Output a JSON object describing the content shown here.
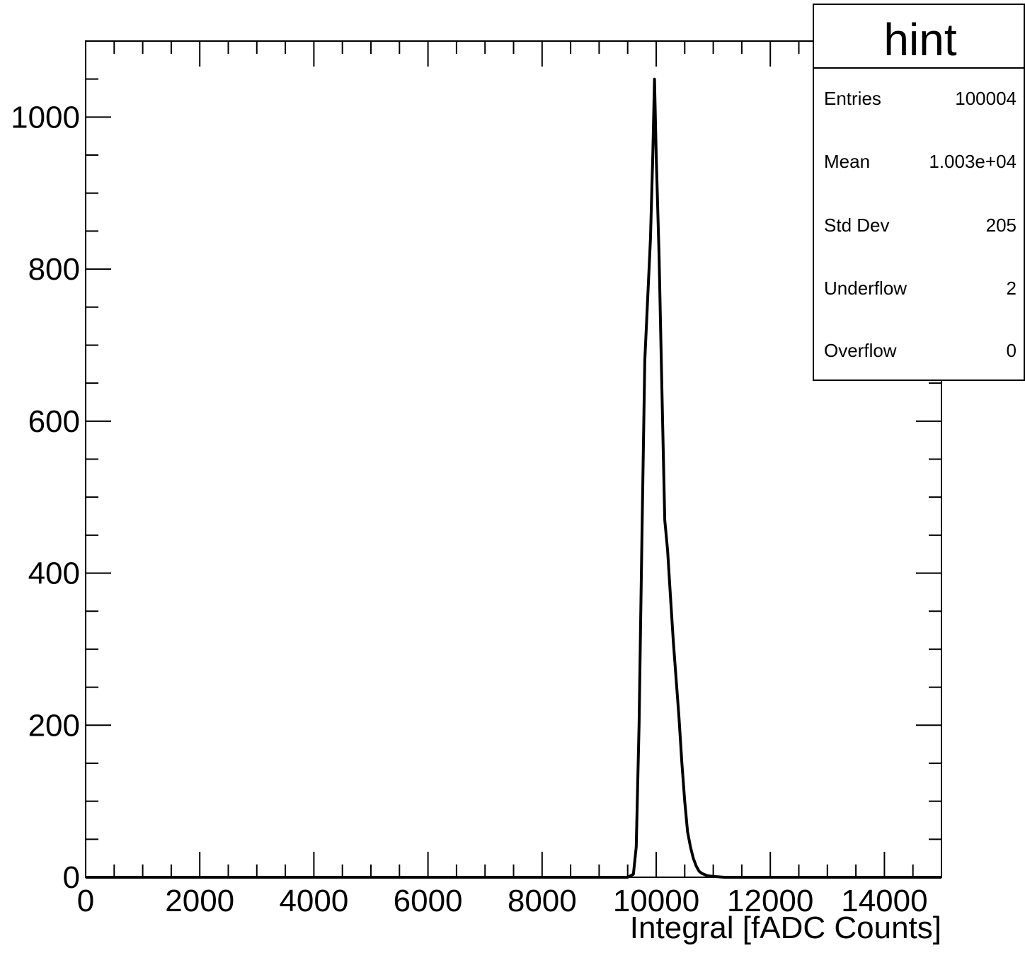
{
  "chart_data": {
    "type": "histogram",
    "xlabel": "Integral [fADC Counts]",
    "ylabel": "",
    "xlim": [
      0,
      15000
    ],
    "ylim": [
      0,
      1100
    ],
    "x_ticks": [
      0,
      2000,
      4000,
      6000,
      8000,
      10000,
      12000,
      14000
    ],
    "x_tick_labels": [
      "0",
      "2000",
      "4000",
      "6000",
      "8000",
      "10000",
      "12000",
      "14000"
    ],
    "y_ticks": [
      0,
      200,
      400,
      600,
      800,
      1000
    ],
    "y_tick_labels": [
      "0",
      "200",
      "400",
      "600",
      "800",
      "1000"
    ],
    "grid": false,
    "series": [
      {
        "points": [
          [
            0,
            0
          ],
          [
            9500,
            0
          ],
          [
            9600,
            4
          ],
          [
            9650,
            40
          ],
          [
            9700,
            200
          ],
          [
            9750,
            450
          ],
          [
            9800,
            680
          ],
          [
            9850,
            760
          ],
          [
            9900,
            840
          ],
          [
            9940,
            950
          ],
          [
            9970,
            1050
          ],
          [
            10000,
            950
          ],
          [
            10050,
            820
          ],
          [
            10100,
            640
          ],
          [
            10150,
            470
          ],
          [
            10200,
            430
          ],
          [
            10250,
            370
          ],
          [
            10300,
            310
          ],
          [
            10350,
            260
          ],
          [
            10400,
            210
          ],
          [
            10450,
            150
          ],
          [
            10500,
            100
          ],
          [
            10550,
            60
          ],
          [
            10600,
            40
          ],
          [
            10650,
            25
          ],
          [
            10700,
            15
          ],
          [
            10750,
            8
          ],
          [
            10800,
            5
          ],
          [
            10900,
            2
          ],
          [
            11000,
            1
          ],
          [
            11200,
            0
          ],
          [
            15000,
            0
          ]
        ]
      }
    ]
  },
  "stats": {
    "title": "hint",
    "rows": [
      {
        "label": "Entries",
        "value": "100004"
      },
      {
        "label": "Mean",
        "value": "1.003e+04"
      },
      {
        "label": "Std Dev",
        "value": "205"
      },
      {
        "label": "Underflow",
        "value": "2"
      },
      {
        "label": "Overflow",
        "value": "0"
      }
    ]
  }
}
